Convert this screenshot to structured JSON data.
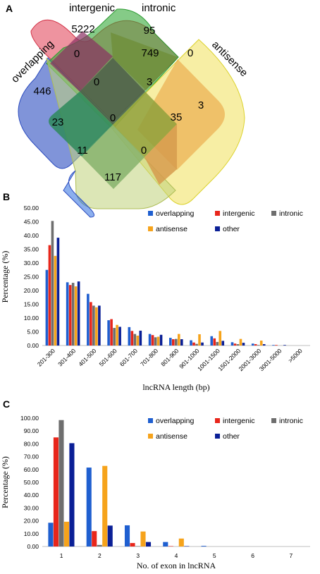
{
  "panels": {
    "a": "A",
    "b": "B",
    "c": "C"
  },
  "colors": {
    "overlapping": "#1f5fd0",
    "intergenic": "#e8261b",
    "intronic": "#6e6e6e",
    "antisense": "#f6a31b",
    "other": "#0a1f96"
  },
  "chart_data": [
    {
      "type": "venn",
      "sets": [
        "overlapping",
        "intergenic",
        "intronic",
        "antisense"
      ],
      "regions": [
        {
          "sets": [
            "intergenic"
          ],
          "value": 5222
        },
        {
          "sets": [
            "intronic"
          ],
          "value": 95
        },
        {
          "sets": [
            "overlapping"
          ],
          "value": 446
        },
        {
          "sets": [
            "antisense"
          ],
          "value": 3
        },
        {
          "sets": [
            "overlapping",
            "intergenic"
          ],
          "value": 0
        },
        {
          "sets": [
            "intergenic",
            "intronic"
          ],
          "value": 749
        },
        {
          "sets": [
            "intronic",
            "antisense"
          ],
          "value": 0
        },
        {
          "sets": [
            "overlapping",
            "intergenic",
            "intronic"
          ],
          "value": 0
        },
        {
          "sets": [
            "intergenic",
            "intronic",
            "antisense"
          ],
          "value": 3
        },
        {
          "sets": [
            "overlapping",
            "intronic"
          ],
          "value": 23
        },
        {
          "sets": [
            "overlapping",
            "intergenic",
            "intronic",
            "antisense"
          ],
          "value": 0
        },
        {
          "sets": [
            "intergenic",
            "antisense"
          ],
          "value": 35
        },
        {
          "sets": [
            "overlapping",
            "intronic",
            "antisense"
          ],
          "value": 11
        },
        {
          "sets": [
            "overlapping",
            "intergenic",
            "antisense"
          ],
          "value": 0
        },
        {
          "sets": [
            "overlapping",
            "antisense"
          ],
          "value": 117
        }
      ]
    },
    {
      "type": "bar",
      "xlabel": "lncRNA length (bp)",
      "ylabel": "Percentage (%)",
      "ylim": [
        0,
        50
      ],
      "yticks": [
        "0.00",
        "5.00",
        "10.00",
        "15.00",
        "20.00",
        "25.00",
        "30.00",
        "35.00",
        "40.00",
        "45.00",
        "50.00"
      ],
      "grid": false,
      "legend": "top-right",
      "categories": [
        "201-300",
        "301-400",
        "401-500",
        "501-600",
        "601-700",
        "701-800",
        "801-900",
        "901-1000",
        "1001-1500",
        "1501-2000",
        "2001-3000",
        "3001-5000",
        ">5000"
      ],
      "series": [
        {
          "name": "overlapping",
          "values": [
            27.5,
            23.0,
            18.8,
            9.2,
            6.7,
            4.2,
            2.8,
            1.9,
            3.4,
            1.2,
            0.7,
            0.2,
            0.0
          ]
        },
        {
          "name": "intergenic",
          "values": [
            36.5,
            22.0,
            15.8,
            9.6,
            5.3,
            3.8,
            2.3,
            1.1,
            2.6,
            0.7,
            0.5,
            0.2,
            0.0
          ]
        },
        {
          "name": "intronic",
          "values": [
            45.3,
            22.8,
            14.5,
            6.4,
            4.2,
            3.0,
            2.4,
            0.6,
            1.3,
            0.5,
            0.2,
            0.0,
            0.0
          ]
        },
        {
          "name": "antisense",
          "values": [
            32.6,
            21.5,
            13.9,
            7.5,
            3.6,
            3.2,
            4.2,
            4.1,
            5.3,
            2.4,
            1.8,
            0.0,
            0.0
          ]
        },
        {
          "name": "other",
          "values": [
            39.2,
            23.3,
            14.5,
            6.8,
            5.4,
            3.9,
            2.3,
            1.1,
            1.7,
            1.0,
            0.5,
            0.2,
            0.0
          ]
        }
      ]
    },
    {
      "type": "bar",
      "xlabel": "No. of exon in lncRNA",
      "ylabel": "Percentage (%)",
      "ylim": [
        0,
        100
      ],
      "yticks": [
        "0.00",
        "10.00",
        "20.00",
        "30.00",
        "40.00",
        "50.00",
        "60.00",
        "70.00",
        "80.00",
        "90.00",
        "100.00"
      ],
      "grid": false,
      "legend": "top-right",
      "categories": [
        "1",
        "2",
        "3",
        "4",
        "5",
        "6",
        "7"
      ],
      "series": [
        {
          "name": "overlapping",
          "values": [
            18.5,
            61.5,
            16.5,
            3.5,
            0.5,
            0.0,
            0.0
          ]
        },
        {
          "name": "intergenic",
          "values": [
            85.0,
            12.0,
            2.7,
            0.3,
            0.0,
            0.0,
            0.0
          ]
        },
        {
          "name": "intronic",
          "values": [
            98.5,
            1.2,
            0.3,
            0.0,
            0.0,
            0.0,
            0.0
          ]
        },
        {
          "name": "antisense",
          "values": [
            19.3,
            62.8,
            11.7,
            6.2,
            0.0,
            0.0,
            0.0
          ]
        },
        {
          "name": "other",
          "values": [
            80.5,
            16.3,
            3.5,
            0.3,
            0.0,
            0.0,
            0.0
          ]
        }
      ]
    }
  ]
}
